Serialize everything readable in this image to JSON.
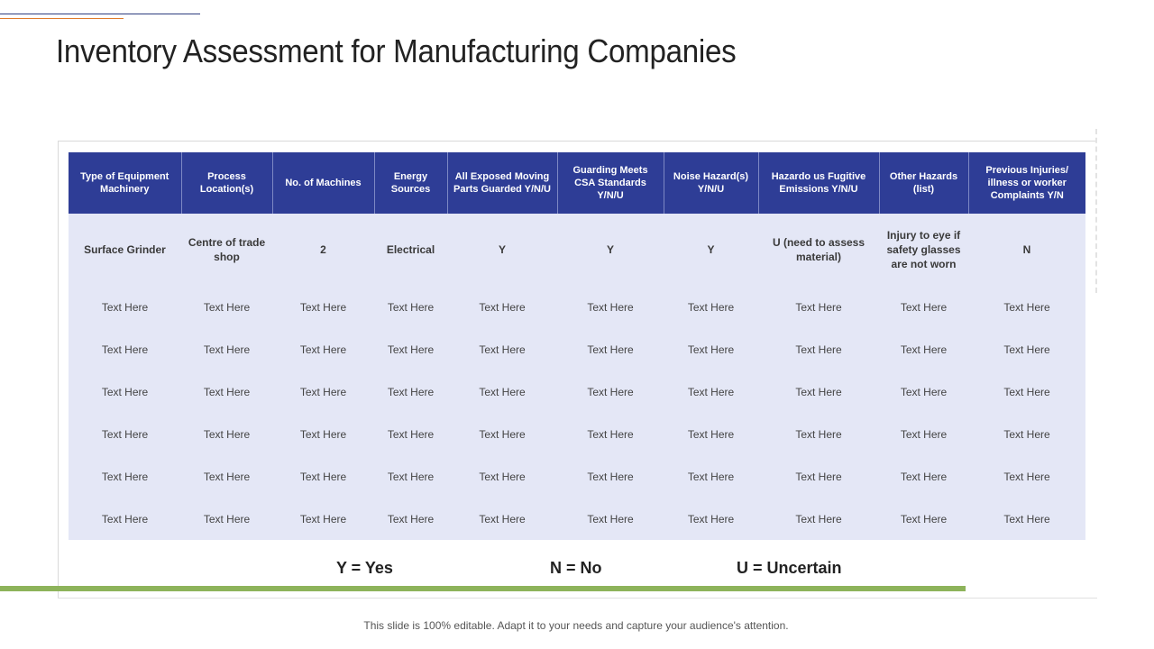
{
  "slide": {
    "title": "Inventory Assessment for Manufacturing Companies",
    "footer_note": "This slide is 100% editable. Adapt it to your needs and capture your audience's attention."
  },
  "table": {
    "headers": [
      "Type of Equipment Machinery",
      "Process Location(s)",
      "No. of Machines",
      "Energy Sources",
      "All Exposed Moving Parts Guarded Y/N/U",
      "Guarding Meets CSA Standards Y/N/U",
      "Noise Hazard(s) Y/N/U",
      "Hazardo us Fugitive Emissions Y/N/U",
      "Other Hazards (list)",
      "Previous Injuries/ illness or worker Complaints Y/N"
    ],
    "rows": [
      [
        "Surface Grinder",
        "Centre of trade shop",
        "2",
        "Electrical",
        "Y",
        "Y",
        "Y",
        "U (need to assess material)",
        "Injury to eye if safety glasses are not worn",
        "N"
      ],
      [
        "Text Here",
        "Text Here",
        "Text Here",
        "Text Here",
        "Text Here",
        "Text Here",
        "Text Here",
        "Text Here",
        "Text Here",
        "Text Here"
      ],
      [
        "Text Here",
        "Text Here",
        "Text Here",
        "Text Here",
        "Text Here",
        "Text Here",
        "Text Here",
        "Text Here",
        "Text Here",
        "Text Here"
      ],
      [
        "Text Here",
        "Text Here",
        "Text Here",
        "Text Here",
        "Text Here",
        "Text Here",
        "Text Here",
        "Text Here",
        "Text Here",
        "Text Here"
      ],
      [
        "Text Here",
        "Text Here",
        "Text Here",
        "Text Here",
        "Text Here",
        "Text Here",
        "Text Here",
        "Text Here",
        "Text Here",
        "Text Here"
      ],
      [
        "Text Here",
        "Text Here",
        "Text Here",
        "Text Here",
        "Text Here",
        "Text Here",
        "Text Here",
        "Text Here",
        "Text Here",
        "Text Here"
      ],
      [
        "Text Here",
        "Text Here",
        "Text Here",
        "Text Here",
        "Text Here",
        "Text Here",
        "Text Here",
        "Text Here",
        "Text Here",
        "Text Here"
      ]
    ]
  },
  "legend": {
    "yes": "Y = Yes",
    "no": "N = No",
    "uncertain": "U = Uncertain"
  },
  "colors": {
    "header_bg": "#2e3d96",
    "cell_bg": "#e4e7f6",
    "accent_green": "#8db35a",
    "accent_orange": "#e07b2a"
  }
}
